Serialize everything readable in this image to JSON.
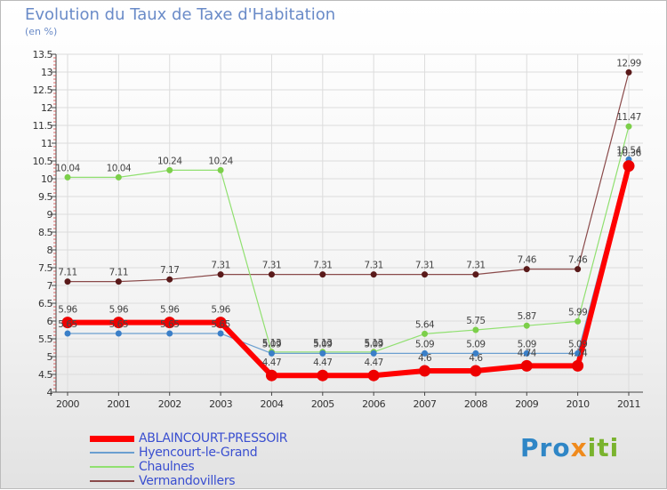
{
  "header": {
    "title": "Evolution du Taux de Taxe d'Habitation",
    "unit": "(en %)"
  },
  "brand": {
    "part1": "Pro",
    "part2": "x",
    "part3": "iti",
    "c1": "#2f86c6",
    "c2": "#f08a1c",
    "c3": "#7ab32e"
  },
  "chart_data": {
    "type": "line",
    "title": "Evolution du Taux de Taxe d'Habitation",
    "ylabel": "(en %)",
    "xlabel": "",
    "x": [
      "2000",
      "2001",
      "2002",
      "2003",
      "2004",
      "2005",
      "2006",
      "2007",
      "2008",
      "2009",
      "2010",
      "2011"
    ],
    "ylim": [
      4,
      13.5
    ],
    "yticks": [
      "4",
      "4.5",
      "5",
      "5.5",
      "6",
      "6.5",
      "7",
      "7.5",
      "8",
      "8.5",
      "9",
      "9.5",
      "10",
      "10.5",
      "11",
      "11.5",
      "12",
      "12.5",
      "13",
      "13.5"
    ],
    "series": [
      {
        "name": "ABLAINCOURT-PRESSOIR",
        "color": "#ff0000",
        "marker": "#ee0000",
        "width": 6,
        "r": 6,
        "values": [
          5.96,
          5.96,
          5.96,
          5.96,
          4.47,
          4.47,
          4.47,
          4.6,
          4.6,
          4.74,
          4.74,
          10.36
        ],
        "labels": [
          "5.96",
          "5.96",
          "5.96",
          "5.96",
          "4.47",
          "4.47",
          "4.47",
          "4.6",
          "4.6",
          "4.74",
          "4.74",
          "10.36"
        ]
      },
      {
        "name": "Hyencourt-le-Grand",
        "color": "#6b9fd0",
        "marker": "#3a7fc8",
        "width": 1.2,
        "r": 3,
        "values": [
          5.65,
          5.65,
          5.65,
          5.65,
          5.09,
          5.09,
          5.09,
          5.09,
          5.09,
          5.09,
          5.09,
          10.54
        ],
        "labels": [
          "5.65",
          "5.65",
          "5.65",
          "5.65",
          "5.09",
          "5.09",
          "5.09",
          "5.09",
          "5.09",
          "5.09",
          "5.09",
          "10.54"
        ]
      },
      {
        "name": "Chaulnes",
        "color": "#90e070",
        "marker": "#7ccf4a",
        "width": 1.2,
        "r": 3,
        "values": [
          10.04,
          10.04,
          10.24,
          10.24,
          5.13,
          5.13,
          5.13,
          5.64,
          5.75,
          5.87,
          5.99,
          11.47
        ],
        "labels": [
          "10.04",
          "10.04",
          "10.24",
          "10.24",
          "5.13",
          "5.13",
          "5.13",
          "5.64",
          "5.75",
          "5.87",
          "5.99",
          "11.47"
        ]
      },
      {
        "name": "Vermandovillers",
        "color": "#8a4a4a",
        "marker": "#5a1a1a",
        "width": 1.2,
        "r": 3,
        "values": [
          7.11,
          7.11,
          7.17,
          7.31,
          7.31,
          7.31,
          7.31,
          7.31,
          7.31,
          7.46,
          7.46,
          12.99
        ],
        "labels": [
          "7.11",
          "7.11",
          "7.17",
          "7.31",
          "7.31",
          "7.31",
          "7.31",
          "7.31",
          "7.31",
          "7.46",
          "7.46",
          "12.99"
        ]
      }
    ]
  }
}
